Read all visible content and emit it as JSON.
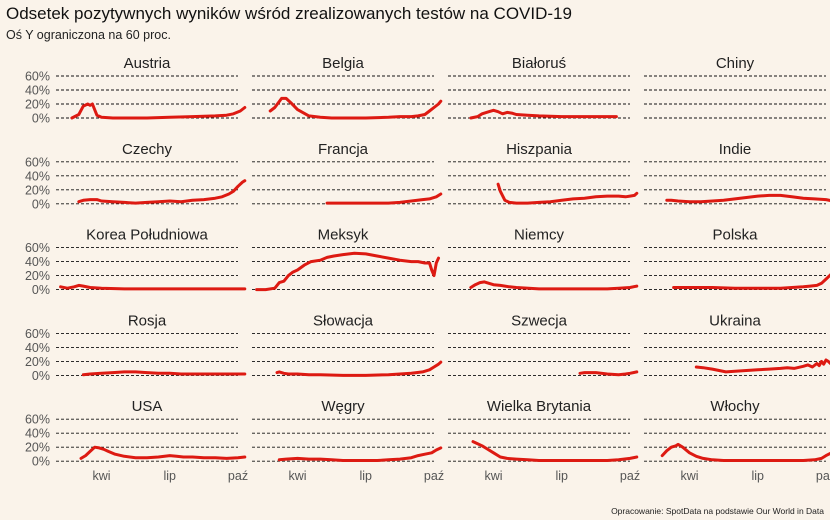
{
  "title": "Odsetek pozytywnych wyników wśród zrealizowanych testów na COVID-19",
  "subtitle": "Oś Y ograniczona na 60 proc.",
  "source": "Opracowanie: SpotData na podstawie Our World in Data",
  "colors": {
    "line": "#dd1a12",
    "background": "#faf3ea"
  },
  "chart_data": {
    "type": "line",
    "layout": "small-multiples",
    "ylim": [
      0,
      60
    ],
    "y_ticks": [
      0,
      20,
      40,
      60
    ],
    "y_tick_labels": [
      "0%",
      "20%",
      "40%",
      "60%"
    ],
    "x_month_range": [
      2,
      10
    ],
    "x_ticks": [
      4,
      7,
      10
    ],
    "x_tick_labels": [
      "kwi",
      "lip",
      "paź"
    ],
    "panels": [
      {
        "name": "Austria",
        "x": [
          2.7,
          3.0,
          3.2,
          3.4,
          3.5,
          3.6,
          3.8,
          4.0,
          4.5,
          5,
          6,
          7,
          8,
          9,
          9.5,
          9.8,
          10.1,
          10.3
        ],
        "y": [
          0,
          5,
          17,
          20,
          18,
          20,
          4,
          1,
          0,
          0,
          0,
          1,
          2,
          3,
          4,
          6,
          10,
          15
        ]
      },
      {
        "name": "Belgia",
        "x": [
          2.8,
          3.0,
          3.3,
          3.5,
          3.7,
          4.0,
          4.5,
          5,
          5.5,
          6,
          7,
          8,
          8.5,
          9,
          9.3,
          9.6,
          9.8,
          10,
          10.2,
          10.3
        ],
        "y": [
          10,
          15,
          28,
          28,
          22,
          12,
          3,
          1,
          0,
          0,
          0,
          1,
          2,
          2,
          3,
          5,
          10,
          15,
          20,
          24
        ]
      },
      {
        "name": "Białoruś",
        "x": [
          3.0,
          3.3,
          3.5,
          3.8,
          4.0,
          4.2,
          4.4,
          4.6,
          4.8,
          5,
          5.5,
          6,
          7,
          8,
          9,
          9.4
        ],
        "y": [
          0,
          2,
          6,
          9,
          11,
          9,
          6,
          8,
          7,
          5,
          4,
          3,
          2,
          2,
          2,
          2
        ]
      },
      {
        "name": "Chiny",
        "x": [],
        "y": []
      },
      {
        "name": "Czechy",
        "x": [
          3.0,
          3.2,
          3.5,
          3.8,
          4.0,
          4.5,
          5,
          5.5,
          6,
          6.5,
          7,
          7.5,
          8,
          8.5,
          9,
          9.3,
          9.6,
          9.8,
          10,
          10.2,
          10.3
        ],
        "y": [
          3,
          5,
          6,
          6,
          4,
          3,
          2,
          1,
          2,
          3,
          4,
          3,
          5,
          6,
          8,
          10,
          14,
          18,
          25,
          31,
          33
        ]
      },
      {
        "name": "Francja",
        "x": [
          5.3,
          6,
          7,
          8,
          8.5,
          9,
          9.5,
          9.8,
          10.1,
          10.3
        ],
        "y": [
          1,
          1,
          1,
          1,
          2,
          4,
          6,
          7,
          10,
          14
        ]
      },
      {
        "name": "Hiszpania",
        "x": [
          4.2,
          4.3,
          4.5,
          4.7,
          5,
          5.5,
          6,
          6.5,
          7,
          7.5,
          8,
          8.5,
          9,
          9.5,
          9.8,
          10,
          10.2,
          10.3
        ],
        "y": [
          28,
          18,
          5,
          2,
          1,
          1,
          2,
          3,
          5,
          7,
          8,
          10,
          11,
          11,
          10,
          11,
          12,
          15
        ]
      },
      {
        "name": "Indie",
        "x": [
          3.0,
          3.2,
          3.5,
          4,
          4.5,
          5,
          5.5,
          6,
          6.5,
          7,
          7.5,
          8,
          8.5,
          9,
          9.5,
          10,
          10.3
        ],
        "y": [
          5,
          5,
          4,
          3,
          3,
          4,
          5,
          7,
          9,
          11,
          12,
          12,
          10,
          8,
          7,
          6,
          4
        ]
      },
      {
        "name": "Korea Południowa",
        "x": [
          2.2,
          2.5,
          2.8,
          3,
          3.2,
          3.5,
          4,
          5,
          6,
          7,
          8,
          9,
          10,
          10.3
        ],
        "y": [
          4,
          2,
          4,
          6,
          5,
          3,
          2,
          1,
          1,
          1,
          1,
          1,
          1,
          1
        ]
      },
      {
        "name": "Meksyk",
        "x": [
          2.2,
          2.6,
          3.0,
          3.2,
          3.4,
          3.6,
          3.8,
          4,
          4.3,
          4.6,
          5,
          5.3,
          5.6,
          6,
          6.5,
          7,
          7.5,
          8,
          8.5,
          9,
          9.3,
          9.6,
          9.8,
          9.9,
          10,
          10.1,
          10.2
        ],
        "y": [
          0,
          0,
          2,
          10,
          12,
          20,
          25,
          28,
          35,
          40,
          42,
          46,
          48,
          50,
          52,
          51,
          48,
          45,
          42,
          40,
          40,
          38,
          38,
          28,
          20,
          38,
          45
        ]
      },
      {
        "name": "Niemcy",
        "x": [
          3.0,
          3.2,
          3.4,
          3.6,
          3.8,
          4.0,
          4.3,
          4.7,
          5,
          6,
          7,
          8,
          8.5,
          9,
          9.5,
          10,
          10.3
        ],
        "y": [
          3,
          7,
          10,
          11,
          9,
          7,
          6,
          4,
          3,
          1,
          1,
          1,
          1,
          1,
          2,
          3,
          5
        ]
      },
      {
        "name": "Polska",
        "x": [
          3.3,
          4,
          5,
          6,
          7,
          8,
          8.5,
          9,
          9.3,
          9.6,
          9.8,
          10,
          10.2,
          10.3
        ],
        "y": [
          3,
          3,
          3,
          2,
          2,
          2,
          3,
          4,
          5,
          6,
          9,
          15,
          21,
          25
        ]
      },
      {
        "name": "Rosja",
        "x": [
          3.2,
          3.5,
          4,
          4.5,
          5,
          5.5,
          6,
          6.5,
          7,
          7.5,
          8,
          9,
          10,
          10.3
        ],
        "y": [
          1,
          2,
          3,
          4,
          5,
          5,
          4,
          3,
          3,
          2,
          2,
          2,
          2,
          2
        ]
      },
      {
        "name": "Słowacja",
        "x": [
          3.1,
          3.2,
          3.4,
          3.6,
          4,
          4.5,
          5,
          6,
          7,
          8,
          8.5,
          9,
          9.5,
          9.8,
          10,
          10.2,
          10.3
        ],
        "y": [
          4,
          5,
          3,
          2,
          2,
          1,
          1,
          0,
          0,
          1,
          2,
          3,
          5,
          8,
          12,
          16,
          19
        ]
      },
      {
        "name": "Szwecja",
        "x": [
          7.8,
          8,
          8.5,
          9,
          9.5,
          9.8,
          10,
          10.3
        ],
        "y": [
          3,
          4,
          4,
          2,
          1,
          2,
          3,
          5
        ]
      },
      {
        "name": "Ukraina",
        "x": [
          4.3,
          4.6,
          5,
          5.3,
          5.6,
          6,
          6.5,
          7,
          7.5,
          8,
          8.3,
          8.6,
          9,
          9.2,
          9.4,
          9.6,
          9.7,
          9.8,
          9.9,
          10,
          10.1,
          10.2,
          10.3
        ],
        "y": [
          12,
          11,
          9,
          7,
          5,
          6,
          7,
          8,
          9,
          10,
          11,
          10,
          13,
          15,
          12,
          17,
          14,
          20,
          16,
          22,
          20,
          17,
          16
        ]
      },
      {
        "name": "USA",
        "x": [
          3.1,
          3.3,
          3.5,
          3.7,
          3.9,
          4.1,
          4.3,
          4.6,
          5,
          5.5,
          6,
          6.5,
          7,
          7.3,
          7.6,
          8,
          8.5,
          9,
          9.5,
          10,
          10.3
        ],
        "y": [
          4,
          8,
          14,
          20,
          19,
          17,
          14,
          10,
          7,
          5,
          5,
          6,
          8,
          7,
          6,
          6,
          5,
          5,
          4,
          5,
          6
        ]
      },
      {
        "name": "Węgry",
        "x": [
          3.2,
          3.5,
          4,
          4.5,
          5,
          5.5,
          6,
          7,
          7.5,
          8,
          8.5,
          9,
          9.3,
          9.6,
          9.9,
          10.1,
          10.3
        ],
        "y": [
          2,
          3,
          4,
          3,
          3,
          2,
          1,
          1,
          1,
          2,
          3,
          5,
          8,
          10,
          12,
          16,
          19
        ]
      },
      {
        "name": "Wielka Brytania",
        "x": [
          3.1,
          3.3,
          3.5,
          3.7,
          4,
          4.3,
          4.6,
          5,
          5.5,
          6,
          7,
          8,
          9,
          9.5,
          10,
          10.3
        ],
        "y": [
          28,
          25,
          22,
          18,
          12,
          6,
          4,
          3,
          2,
          1,
          1,
          1,
          1,
          2,
          4,
          6
        ]
      },
      {
        "name": "Włochy",
        "x": [
          2.8,
          3.0,
          3.2,
          3.4,
          3.5,
          3.7,
          4,
          4.3,
          4.6,
          5,
          5.5,
          6,
          7,
          8,
          9,
          9.5,
          9.8,
          10,
          10.3
        ],
        "y": [
          8,
          15,
          20,
          22,
          24,
          20,
          12,
          7,
          4,
          2,
          1,
          1,
          1,
          1,
          1,
          2,
          4,
          8,
          13
        ]
      }
    ]
  }
}
